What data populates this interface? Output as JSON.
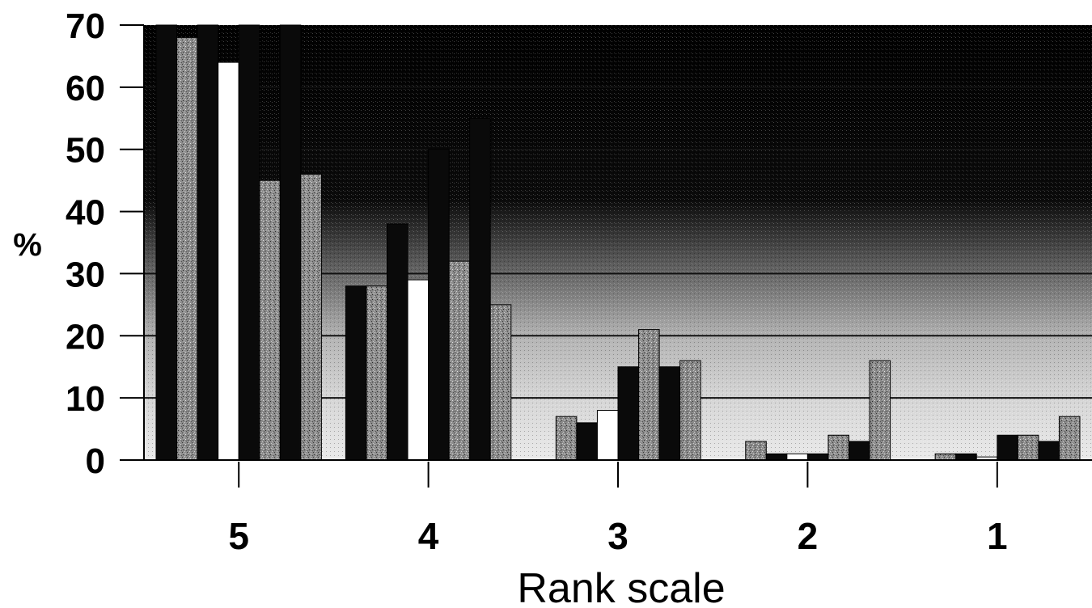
{
  "chart_data": {
    "type": "bar",
    "xlabel": "Rank scale",
    "ylabel": "%",
    "ylim": [
      0,
      70
    ],
    "yticks": [
      "0",
      "10",
      "20",
      "30",
      "40",
      "50",
      "60",
      "70"
    ],
    "categories": [
      "5",
      "4",
      "3",
      "2",
      "1"
    ],
    "grid": "horizontal",
    "series": [
      {
        "color": "#0a0a0a",
        "pattern": "solid",
        "values": [
          70,
          28,
          0,
          0,
          0
        ]
      },
      {
        "color": "#888888",
        "pattern": "speckle",
        "values": [
          68,
          28,
          7,
          3,
          1
        ]
      },
      {
        "color": "#0a0a0a",
        "pattern": "solid",
        "values": [
          70,
          38,
          6,
          1,
          1
        ]
      },
      {
        "color": "#ffffff",
        "pattern": "white",
        "values": [
          64,
          29,
          8,
          1,
          0.5
        ]
      },
      {
        "color": "#0a0a0a",
        "pattern": "solid",
        "values": [
          70,
          50,
          15,
          1,
          4
        ]
      },
      {
        "color": "#888888",
        "pattern": "speckle",
        "values": [
          45,
          32,
          21,
          4,
          4
        ]
      },
      {
        "color": "#0a0a0a",
        "pattern": "solid",
        "values": [
          70,
          55,
          15,
          3,
          3
        ]
      },
      {
        "color": "#888888",
        "pattern": "speckle",
        "values": [
          46,
          25,
          16,
          16,
          7
        ]
      }
    ]
  }
}
